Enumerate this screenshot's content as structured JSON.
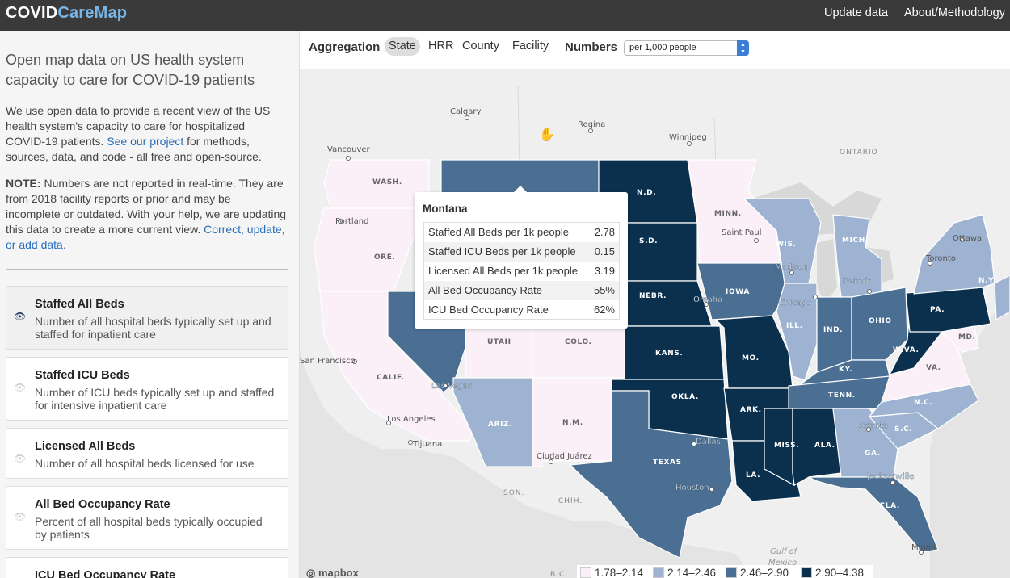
{
  "header": {
    "logo_part1": "COVID",
    "logo_part2": "CareMap",
    "nav": [
      "Update data",
      "About/Methodology"
    ]
  },
  "sidebar": {
    "title": "Open map data on US health system capacity to care for COVID-19 patients",
    "intro_text": "We use open data to provide a recent view of the US health system's capacity to care for hospitalized COVID-19 patients.",
    "intro_link": "See our project",
    "intro_rest": "for methods, sources, data, and code - all free and open-source.",
    "note_label": "NOTE:",
    "note_text": "Numbers are not reported in real-time. They are from 2018 facility reports or prior and may be incomplete or outdated. With your help, we are updating this data to create a more current view.",
    "note_link": "Correct, update, or add data.",
    "metrics": [
      {
        "title": "Staffed All Beds",
        "desc": "Number of all hospital beds typically set up and staffed for inpatient care"
      },
      {
        "title": "Staffed ICU Beds",
        "desc": "Number of ICU beds typically set up and staffed for intensive inpatient care"
      },
      {
        "title": "Licensed All Beds",
        "desc": "Number of all hospital beds licensed for use"
      },
      {
        "title": "All Bed Occupancy Rate",
        "desc": "Percent of all hospital beds typically occupied by patients"
      },
      {
        "title": "ICU Bed Occupancy Rate",
        "desc": ""
      }
    ]
  },
  "toolbar": {
    "aggregation_label": "Aggregation",
    "aggregation_options": [
      "State",
      "HRR",
      "County",
      "Facility"
    ],
    "aggregation_selected": "State",
    "numbers_label": "Numbers",
    "numbers_value": "per 1,000 people"
  },
  "tooltip": {
    "title": "Montana",
    "rows": [
      {
        "label": "Staffed All Beds per 1k people",
        "value": "2.78"
      },
      {
        "label": "Staffed ICU Beds per 1k people",
        "value": "0.15"
      },
      {
        "label": "Licensed All Beds per 1k people",
        "value": "3.19"
      },
      {
        "label": "All Bed Occupancy Rate",
        "value": "55%"
      },
      {
        "label": "ICU Bed Occupancy Rate",
        "value": "62%"
      }
    ]
  },
  "legend": [
    {
      "range": "1.78–2.14",
      "color": "#fbf0f7"
    },
    {
      "range": "2.14–2.46",
      "color": "#9eb3d1"
    },
    {
      "range": "2.46–2.90",
      "color": "#4a6f93"
    },
    {
      "range": "2.90–4.38",
      "color": "#0a304d"
    }
  ],
  "map": {
    "attribution": "mapbox",
    "states": {
      "wash": "WASH.",
      "ore": "ORE.",
      "calif": "CALIF.",
      "nev": "NEV.",
      "utah": "UTAH",
      "colo": "COLO.",
      "ariz": "ARIZ.",
      "nm": "N.M.",
      "nd": "N.D.",
      "sd": "S.D.",
      "nebr": "NEBR.",
      "kans": "KANS.",
      "okla": "OKLA.",
      "texas": "TEXAS",
      "minn": "MINN.",
      "iowa": "IOWA",
      "mo": "MO.",
      "ark": "ARK.",
      "la": "LA.",
      "wis": "WIS.",
      "ill": "ILL.",
      "mich": "MICH.",
      "ind": "IND.",
      "ohio": "OHIO",
      "ky": "KY.",
      "tenn": "TENN.",
      "miss": "MISS.",
      "ala": "ALA.",
      "ga": "GA.",
      "fla": "FLA.",
      "sc": "S.C.",
      "nc": "N.C.",
      "va": "VA.",
      "wva": "W.VA.",
      "pa": "PA.",
      "ny": "N.Y.",
      "md": "MD."
    },
    "regions": {
      "ontario": "ONTARIO",
      "bc": "B.C.",
      "son": "SON.",
      "chih": "CHIH.",
      "gulf1": "Gulf of",
      "gulf2": "Mexico"
    },
    "cities": {
      "calgary": "Calgary",
      "regina": "Regina",
      "winnipeg": "Winnipeg",
      "vancouver": "Vancouver",
      "portland": "Portland",
      "saintpaul": "Saint Paul",
      "madison": "Madison",
      "toronto": "Toronto",
      "ottawa": "Ottawa",
      "chicago": "Chicago",
      "detroit": "Detroit",
      "omaha": "Omaha",
      "sanfrancisco": "San Francisco",
      "lasvegas": "Las Vegas",
      "losangeles": "Los Angeles",
      "tijuana": "Tijuana",
      "ciudadjuarez": "Ciudad Juárez",
      "dallas": "Dallas",
      "houston": "Houston",
      "atlanta": "Atlanta",
      "jacksonville": "Jacksonville",
      "miami": "Miami"
    }
  }
}
